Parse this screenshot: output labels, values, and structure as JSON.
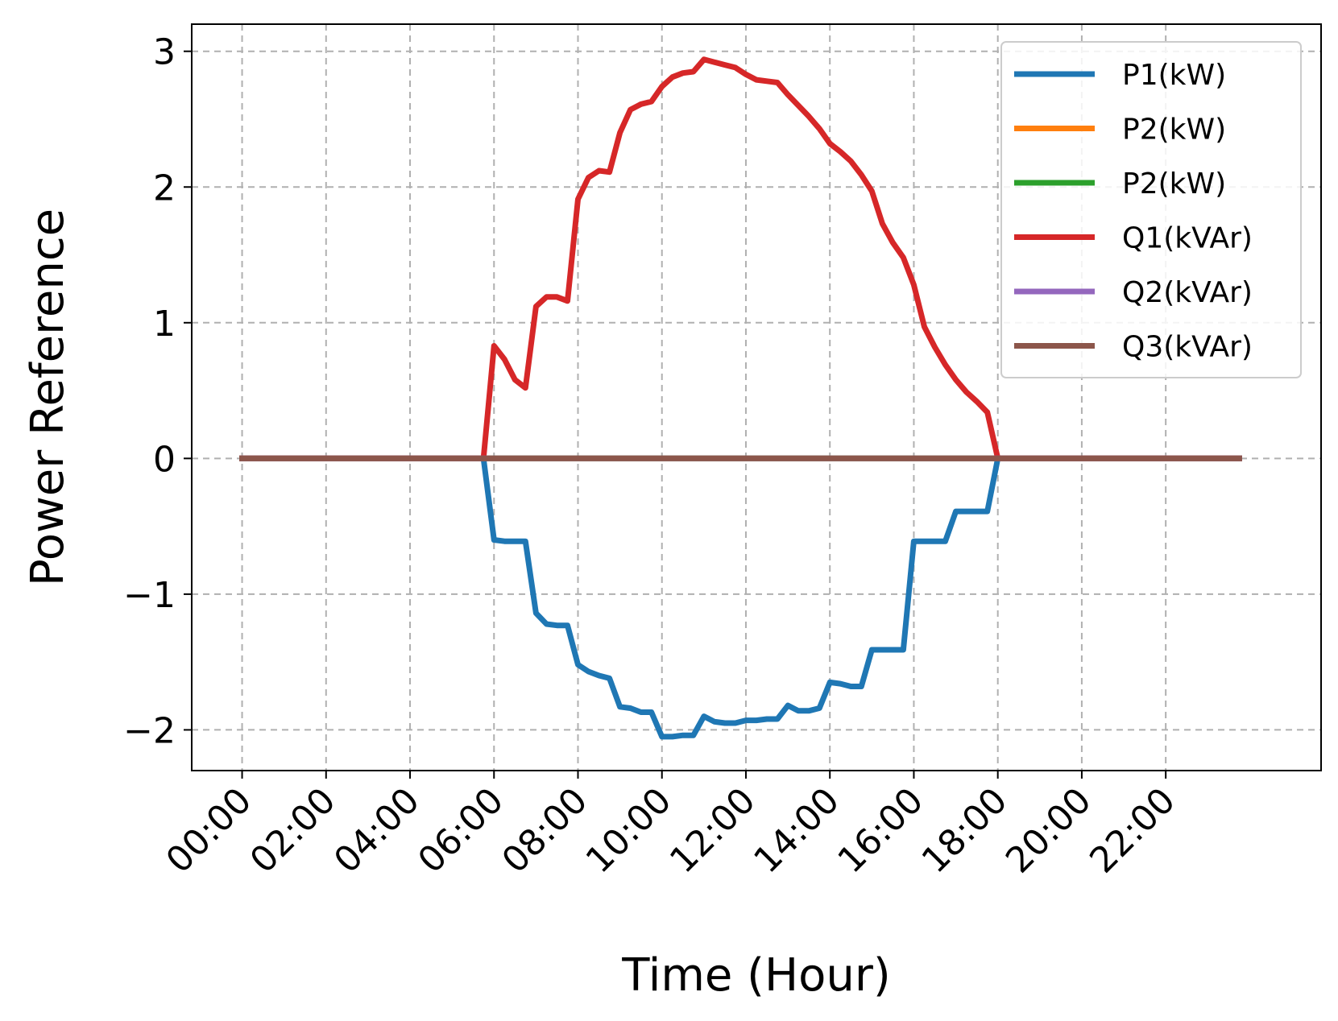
{
  "chart_data": {
    "type": "line",
    "title": "",
    "xlabel": "Time (Hour)",
    "ylabel": "Power Reference",
    "x_unit": "hour",
    "xlim": [
      -1.2,
      25.7
    ],
    "ylim": [
      -2.3,
      3.2
    ],
    "x_ticks": [
      0,
      2,
      4,
      6,
      8,
      10,
      12,
      14,
      16,
      18,
      20,
      22
    ],
    "x_tick_labels": [
      "00:00",
      "02:00",
      "04:00",
      "06:00",
      "08:00",
      "10:00",
      "12:00",
      "14:00",
      "16:00",
      "18:00",
      "20:00",
      "22:00"
    ],
    "y_ticks": [
      -2,
      -1,
      0,
      1,
      2,
      3
    ],
    "y_tick_labels": [
      "−2",
      "−1",
      "0",
      "1",
      "2",
      "3"
    ],
    "grid": true,
    "legend_position": "top-right",
    "series": [
      {
        "name": "P1(kW)",
        "color": "#1f77b4",
        "points": [
          [
            0,
            0
          ],
          [
            5.75,
            0
          ],
          [
            6,
            -0.6
          ],
          [
            6.25,
            -0.61
          ],
          [
            6.5,
            -0.61
          ],
          [
            6.75,
            -0.61
          ],
          [
            7,
            -1.14
          ],
          [
            7.25,
            -1.22
          ],
          [
            7.5,
            -1.23
          ],
          [
            7.75,
            -1.23
          ],
          [
            8,
            -1.52
          ],
          [
            8.25,
            -1.57
          ],
          [
            8.5,
            -1.6
          ],
          [
            8.75,
            -1.62
          ],
          [
            9,
            -1.83
          ],
          [
            9.25,
            -1.84
          ],
          [
            9.5,
            -1.87
          ],
          [
            9.75,
            -1.87
          ],
          [
            10,
            -2.05
          ],
          [
            10.25,
            -2.05
          ],
          [
            10.5,
            -2.04
          ],
          [
            10.75,
            -2.04
          ],
          [
            11,
            -1.9
          ],
          [
            11.25,
            -1.94
          ],
          [
            11.5,
            -1.95
          ],
          [
            11.75,
            -1.95
          ],
          [
            12,
            -1.93
          ],
          [
            12.25,
            -1.93
          ],
          [
            12.5,
            -1.92
          ],
          [
            12.75,
            -1.92
          ],
          [
            13,
            -1.82
          ],
          [
            13.25,
            -1.86
          ],
          [
            13.5,
            -1.86
          ],
          [
            13.75,
            -1.84
          ],
          [
            14,
            -1.65
          ],
          [
            14.25,
            -1.66
          ],
          [
            14.5,
            -1.68
          ],
          [
            14.75,
            -1.68
          ],
          [
            15,
            -1.41
          ],
          [
            15.25,
            -1.41
          ],
          [
            15.5,
            -1.41
          ],
          [
            15.75,
            -1.41
          ],
          [
            16,
            -0.61
          ],
          [
            16.25,
            -0.61
          ],
          [
            16.5,
            -0.61
          ],
          [
            16.75,
            -0.61
          ],
          [
            17,
            -0.39
          ],
          [
            17.25,
            -0.39
          ],
          [
            17.5,
            -0.39
          ],
          [
            17.75,
            -0.39
          ],
          [
            18,
            0
          ],
          [
            23.75,
            0
          ]
        ]
      },
      {
        "name": "P2(kW)",
        "color": "#ff7f0e",
        "points": [
          [
            0,
            0
          ],
          [
            23.75,
            0
          ]
        ]
      },
      {
        "name": "P2(kW)",
        "color": "#2ca02c",
        "points": [
          [
            0,
            0
          ],
          [
            23.75,
            0
          ]
        ]
      },
      {
        "name": "Q1(kVAr)",
        "color": "#d62728",
        "points": [
          [
            0,
            0
          ],
          [
            5.75,
            0
          ],
          [
            6,
            0.83
          ],
          [
            6.25,
            0.73
          ],
          [
            6.5,
            0.58
          ],
          [
            6.75,
            0.52
          ],
          [
            7,
            1.12
          ],
          [
            7.25,
            1.19
          ],
          [
            7.5,
            1.19
          ],
          [
            7.75,
            1.16
          ],
          [
            8,
            1.91
          ],
          [
            8.25,
            2.07
          ],
          [
            8.5,
            2.12
          ],
          [
            8.75,
            2.11
          ],
          [
            9,
            2.4
          ],
          [
            9.25,
            2.57
          ],
          [
            9.5,
            2.61
          ],
          [
            9.75,
            2.63
          ],
          [
            10,
            2.74
          ],
          [
            10.25,
            2.81
          ],
          [
            10.5,
            2.84
          ],
          [
            10.75,
            2.85
          ],
          [
            11,
            2.94
          ],
          [
            11.25,
            2.92
          ],
          [
            11.5,
            2.9
          ],
          [
            11.75,
            2.88
          ],
          [
            12,
            2.83
          ],
          [
            12.25,
            2.79
          ],
          [
            12.5,
            2.78
          ],
          [
            12.75,
            2.77
          ],
          [
            13,
            2.68
          ],
          [
            13.25,
            2.6
          ],
          [
            13.5,
            2.52
          ],
          [
            13.75,
            2.43
          ],
          [
            14,
            2.32
          ],
          [
            14.25,
            2.26
          ],
          [
            14.5,
            2.19
          ],
          [
            14.75,
            2.09
          ],
          [
            15,
            1.97
          ],
          [
            15.25,
            1.73
          ],
          [
            15.5,
            1.59
          ],
          [
            15.75,
            1.48
          ],
          [
            16,
            1.28
          ],
          [
            16.25,
            0.97
          ],
          [
            16.5,
            0.82
          ],
          [
            16.75,
            0.69
          ],
          [
            17,
            0.58
          ],
          [
            17.25,
            0.49
          ],
          [
            17.5,
            0.42
          ],
          [
            17.75,
            0.34
          ],
          [
            18,
            0
          ],
          [
            23.75,
            0
          ]
        ]
      },
      {
        "name": "Q2(kVAr)",
        "color": "#9467bd",
        "points": [
          [
            0,
            0
          ],
          [
            23.75,
            0
          ]
        ]
      },
      {
        "name": "Q3(kVAr)",
        "color": "#8c564b",
        "points": [
          [
            0,
            0
          ],
          [
            23.75,
            0
          ]
        ]
      }
    ]
  }
}
